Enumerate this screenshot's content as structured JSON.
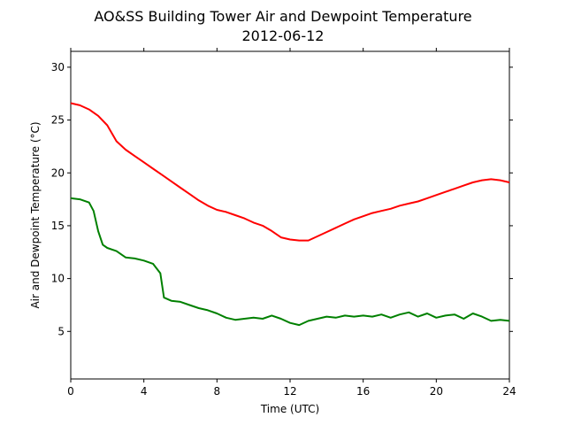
{
  "chart_data": {
    "type": "line",
    "title": "AO&SS Building Tower Air and Dewpoint Temperature",
    "subtitle": "2012-06-12",
    "xlabel": "Time (UTC)",
    "ylabel": "Air and Dewpoint Temperature (°C)",
    "xlim": [
      0,
      24
    ],
    "ylim": [
      0.5,
      31.5
    ],
    "xticks": [
      0,
      4,
      8,
      12,
      16,
      20,
      24
    ],
    "yticks": [
      5,
      10,
      15,
      20,
      25,
      30
    ],
    "grid": false,
    "legend": "none",
    "series": [
      {
        "color": "#ff0000",
        "x": [
          0,
          0.5,
          1,
          1.5,
          2,
          2.5,
          3,
          3.5,
          4,
          4.5,
          5,
          5.5,
          6,
          6.5,
          7,
          7.5,
          8,
          8.5,
          9,
          9.5,
          10,
          10.5,
          11,
          11.5,
          12,
          12.5,
          13,
          13.5,
          14,
          14.5,
          15,
          15.5,
          16,
          16.5,
          17,
          17.5,
          18,
          18.5,
          19,
          19.5,
          20,
          20.5,
          21,
          21.5,
          22,
          22.5,
          23,
          23.5,
          24
        ],
        "y": [
          26.6,
          26.4,
          26.0,
          25.4,
          24.5,
          23.0,
          22.2,
          21.6,
          21.0,
          20.4,
          19.8,
          19.2,
          18.6,
          18.0,
          17.4,
          16.9,
          16.5,
          16.3,
          16.0,
          15.7,
          15.3,
          15.0,
          14.5,
          13.9,
          13.7,
          13.6,
          13.6,
          14.0,
          14.4,
          14.8,
          15.2,
          15.6,
          15.9,
          16.2,
          16.4,
          16.6,
          16.9,
          17.1,
          17.3,
          17.6,
          17.9,
          18.2,
          18.5,
          18.8,
          19.1,
          19.3,
          19.4,
          19.3,
          19.1
        ]
      },
      {
        "color": "#008000",
        "x": [
          0,
          0.5,
          1,
          1.25,
          1.5,
          1.75,
          2,
          2.5,
          3,
          3.5,
          4,
          4.5,
          4.9,
          5.1,
          5.5,
          6,
          6.5,
          7,
          7.5,
          8,
          8.5,
          9,
          9.5,
          10,
          10.5,
          11,
          11.5,
          12,
          12.5,
          13,
          13.5,
          14,
          14.5,
          15,
          15.5,
          16,
          16.5,
          17,
          17.5,
          18,
          18.5,
          19,
          19.5,
          20,
          20.5,
          21,
          21.5,
          22,
          22.5,
          23,
          23.5,
          24
        ],
        "y": [
          17.6,
          17.5,
          17.2,
          16.4,
          14.5,
          13.2,
          12.9,
          12.6,
          12.0,
          11.9,
          11.7,
          11.4,
          10.5,
          8.2,
          7.9,
          7.8,
          7.5,
          7.2,
          7.0,
          6.7,
          6.3,
          6.1,
          6.2,
          6.3,
          6.2,
          6.5,
          6.2,
          5.8,
          5.6,
          6.0,
          6.2,
          6.4,
          6.3,
          6.5,
          6.4,
          6.5,
          6.4,
          6.6,
          6.3,
          6.6,
          6.8,
          6.4,
          6.7,
          6.3,
          6.5,
          6.6,
          6.2,
          6.7,
          6.4,
          6.0,
          6.1,
          6.0
        ]
      }
    ]
  }
}
